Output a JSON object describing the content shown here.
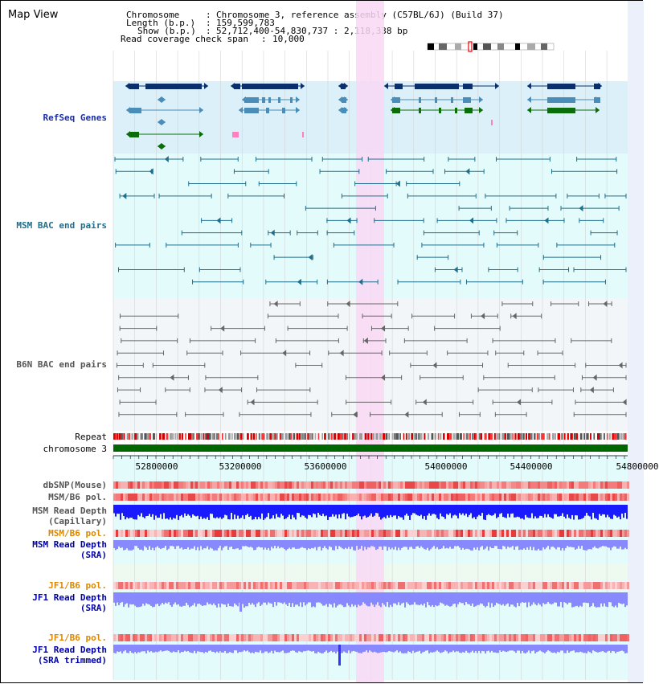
{
  "view_title": "Map View",
  "info": {
    "chromosome_label": "Chromosome",
    "chromosome_value": "Chromosome 3, reference assembly (C57BL/6J) (Build 37)",
    "length_label": "Length (b.p.)",
    "length_value": "159,599,783",
    "show_label": "Show (b.p.)",
    "show_value": "52,712,400-54,830,737 : 2,118,338 bp",
    "coverage_label": "Read coverage check span",
    "coverage_value": "10,000"
  },
  "tracks": {
    "refseq": "RefSeq Genes",
    "msm_bac": "MSM BAC end pairs",
    "b6n_bac": "B6N BAC end pairs",
    "repeat": "Repeat",
    "chromosome": "chromosome 3",
    "dbsnp": "dbSNP(Mouse)",
    "msm_b6_pol": "MSM/B6 pol.",
    "msm_depth_cap_1": "MSM Read Depth",
    "msm_depth_cap_2": "(Capillary)",
    "msm_b6_pol_sra": "MSM/B6 pol.",
    "msm_depth_sra_1": "MSM Read Depth",
    "msm_depth_sra_2": "(SRA)",
    "jf1_b6_pol": "JF1/B6 pol.",
    "jf1_depth_sra_1": "JF1 Read Depth",
    "jf1_depth_sra_2": "(SRA)",
    "jf1_b6_pol_trim": "JF1/B6 pol.",
    "jf1_depth_trim_1": "JF1 Read Depth",
    "jf1_depth_trim_2": "(SRA trimmed)"
  },
  "axis": {
    "ticks": [
      "52800000",
      "53200000",
      "53600000",
      "54000000",
      "54400000",
      "54800000"
    ]
  },
  "colors": {
    "refseq_bg": "#dcf0fa",
    "msm_bg": "#e4fbfb",
    "b6n_bg": "#f3f6f9",
    "highlight": "#f9d8f4",
    "msm_label": "#1f6e8c",
    "b6n_label": "#555555",
    "depth_label": "#0000aa",
    "pol_label": "#dd8800",
    "depth_capillary": "#1a1aff",
    "depth_sra": "#8888ff",
    "chromosome": "#006600",
    "msm_pair": "#1f6e8c",
    "b6n_pair": "#666666"
  }
}
